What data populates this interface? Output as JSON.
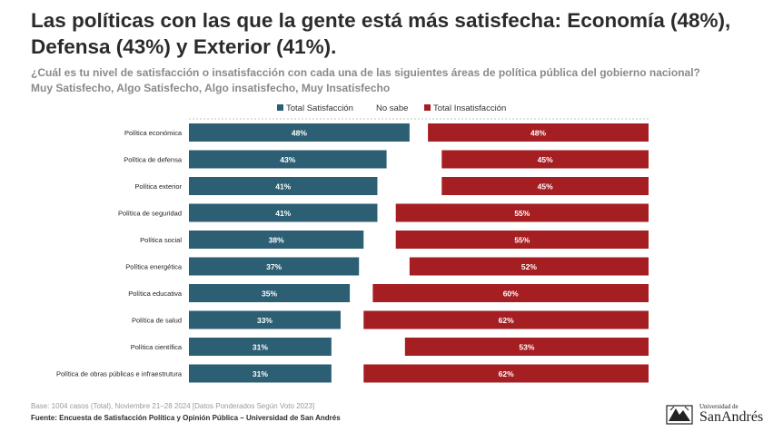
{
  "title": {
    "line1": "Las políticas con las que la gente está más satisfecha: Economía (48%),",
    "line2": "Defensa (43%) y Exterior (41%)."
  },
  "subtitle": {
    "line1": "¿Cuál es tu nivel de satisfacción o insatisfacción con cada una de las siguientes áreas de política pública del gobierno nacional?",
    "line2": "Muy Satisfecho, Algo Satisfecho, Algo insatisfecho, Muy Insatisfecho"
  },
  "footer": {
    "base": "Base: 1004 casos (Total), Noviembre 21–28 2024 [Datos Ponderados Según Voto 2023]",
    "source": "Fuente: Encuesta de Satisfacción Política y Opinión Pública – Universidad de San Andrés"
  },
  "logo": {
    "top": "Universidad de",
    "main": "SanAndrés"
  },
  "colors": {
    "satisfaction": "#2c5f73",
    "no_sabe": "#ffffff",
    "dissatisfaction": "#a51e22"
  },
  "chart_data": {
    "type": "bar",
    "stacked": true,
    "orientation": "horizontal",
    "categories": [
      "Política económica",
      "Política de defensa",
      "Política exterior",
      "Política de seguridad",
      "Política social",
      "Política energética",
      "Política educativa",
      "Política de salud",
      "Política científica",
      "Política de obras públicas e infraestrutura"
    ],
    "series": [
      {
        "name": "Total Satisfacción",
        "values": [
          48,
          43,
          41,
          41,
          38,
          37,
          35,
          33,
          31,
          31
        ]
      },
      {
        "name": "No sabe",
        "values": [
          4,
          12,
          14,
          4,
          7,
          11,
          5,
          5,
          16,
          7
        ]
      },
      {
        "name": "Total Insatisfacción",
        "values": [
          48,
          45,
          45,
          55,
          55,
          52,
          60,
          62,
          53,
          62
        ]
      }
    ],
    "labels": {
      "satisfaction": [
        "48%",
        "43%",
        "41%",
        "41%",
        "38%",
        "37%",
        "35%",
        "33%",
        "31%",
        "31%"
      ],
      "dissatisfaction": [
        "48%",
        "45%",
        "45%",
        "55%",
        "55%",
        "52%",
        "60%",
        "62%",
        "53%",
        "62%"
      ]
    },
    "xlim": [
      0,
      100
    ],
    "legend": "top-center",
    "grid": false
  }
}
